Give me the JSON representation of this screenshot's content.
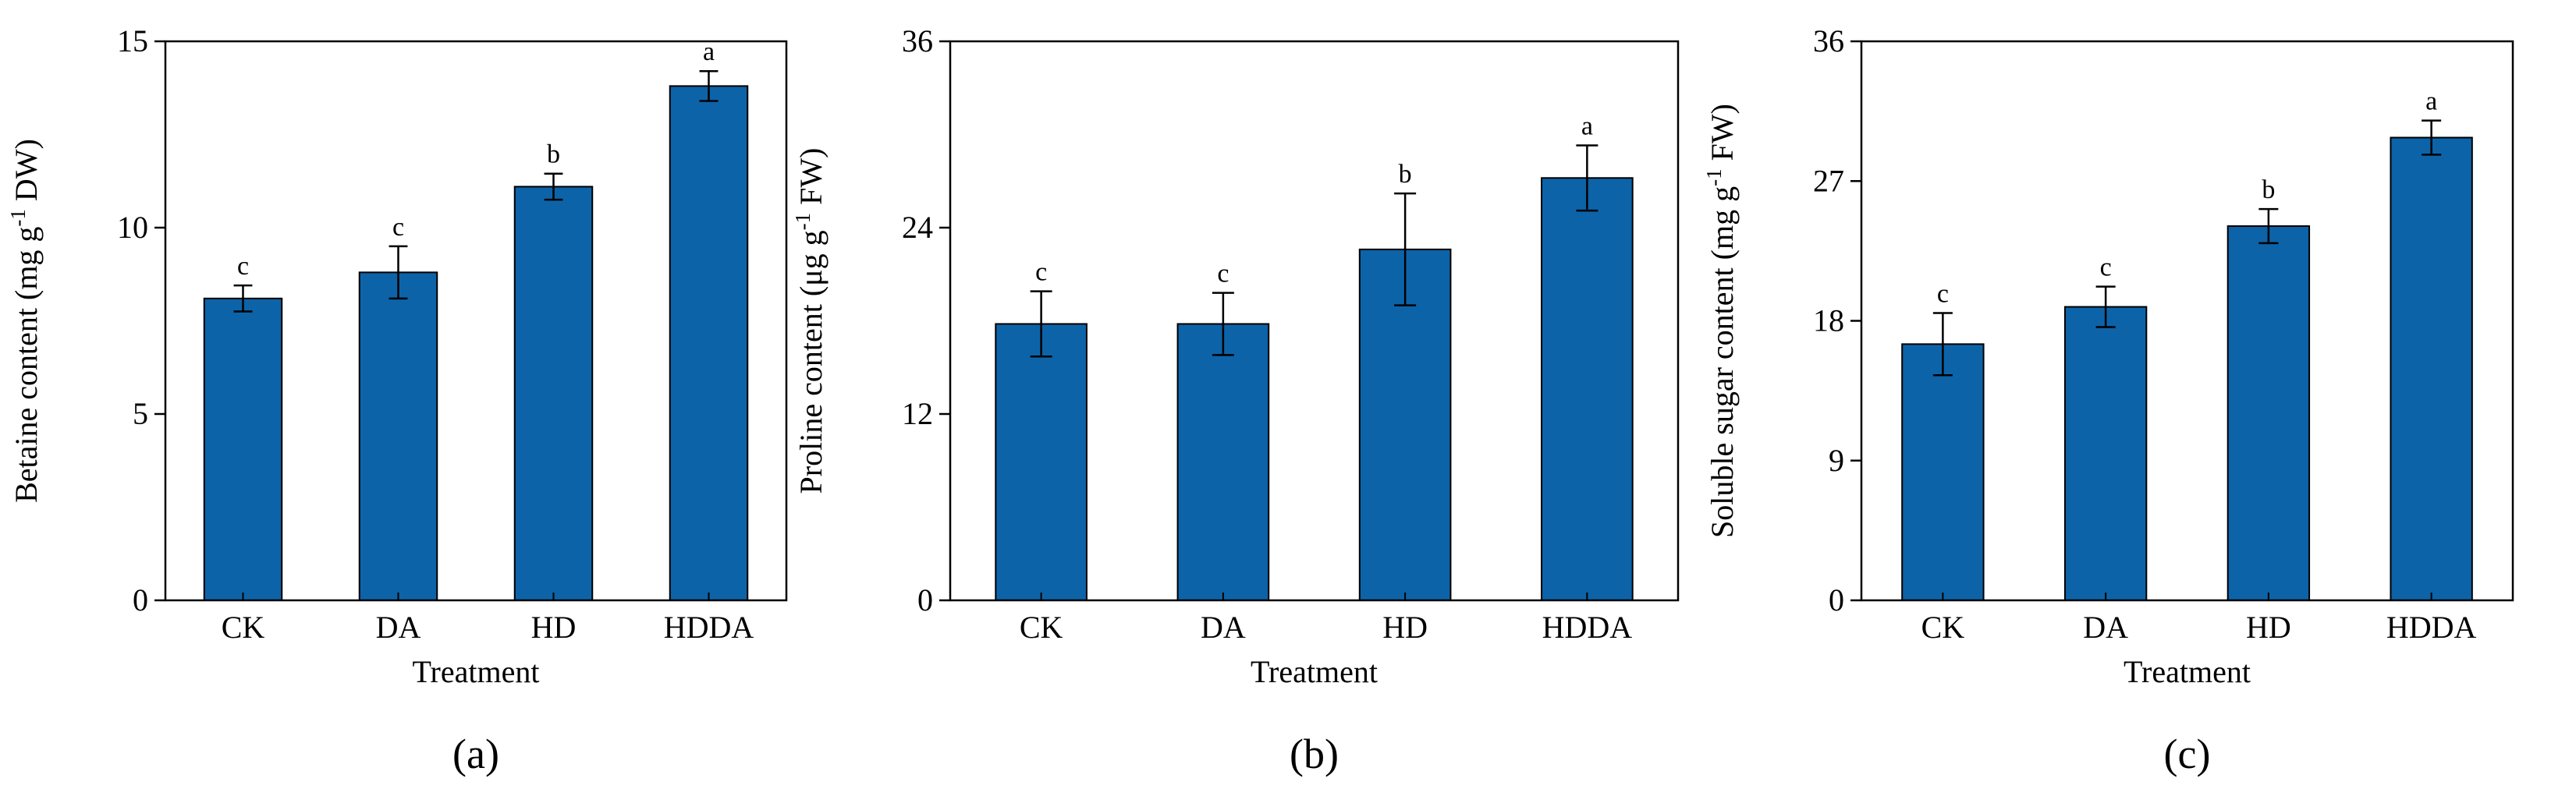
{
  "colors": {
    "bar": "#0D63A8",
    "axis": "#000000"
  },
  "chart_data": [
    {
      "panel_label": "(a)",
      "type": "bar",
      "title": "",
      "xlabel": "Treatment",
      "ylabel_main": "Betaine content (mg g",
      "ylabel_sup": "-1",
      "ylabel_tail": " DW)",
      "ylim": [
        0,
        15
      ],
      "yticks": [
        0,
        5,
        10,
        15
      ],
      "categories": [
        "CK",
        "DA",
        "HD",
        "HDDA"
      ],
      "values": [
        8.1,
        8.8,
        11.1,
        13.8
      ],
      "errors": [
        0.35,
        0.7,
        0.35,
        0.4
      ],
      "letters": [
        "c",
        "c",
        "b",
        "a"
      ],
      "grid": false
    },
    {
      "panel_label": "(b)",
      "type": "bar",
      "title": "",
      "xlabel": "Treatment",
      "ylabel_main": "Proline content (μg g",
      "ylabel_sup": "-1",
      "ylabel_tail": " FW)",
      "ylim": [
        0,
        36
      ],
      "yticks": [
        0,
        12,
        24,
        36
      ],
      "categories": [
        "CK",
        "DA",
        "HD",
        "HDDA"
      ],
      "values": [
        17.8,
        17.8,
        22.6,
        27.2
      ],
      "errors": [
        2.1,
        2.0,
        3.6,
        2.1
      ],
      "letters": [
        "c",
        "c",
        "b",
        "a"
      ],
      "grid": false
    },
    {
      "panel_label": "(c)",
      "type": "bar",
      "title": "",
      "xlabel": "Treatment",
      "ylabel_main": "Soluble sugar content (mg g",
      "ylabel_sup": "-1",
      "ylabel_tail": " FW)",
      "ylim": [
        0,
        36
      ],
      "yticks": [
        0,
        9,
        18,
        27,
        36
      ],
      "categories": [
        "CK",
        "DA",
        "HD",
        "HDDA"
      ],
      "values": [
        16.5,
        18.9,
        24.1,
        29.8
      ],
      "errors": [
        2.0,
        1.3,
        1.1,
        1.1
      ],
      "letters": [
        "c",
        "c",
        "b",
        "a"
      ],
      "grid": false
    }
  ]
}
